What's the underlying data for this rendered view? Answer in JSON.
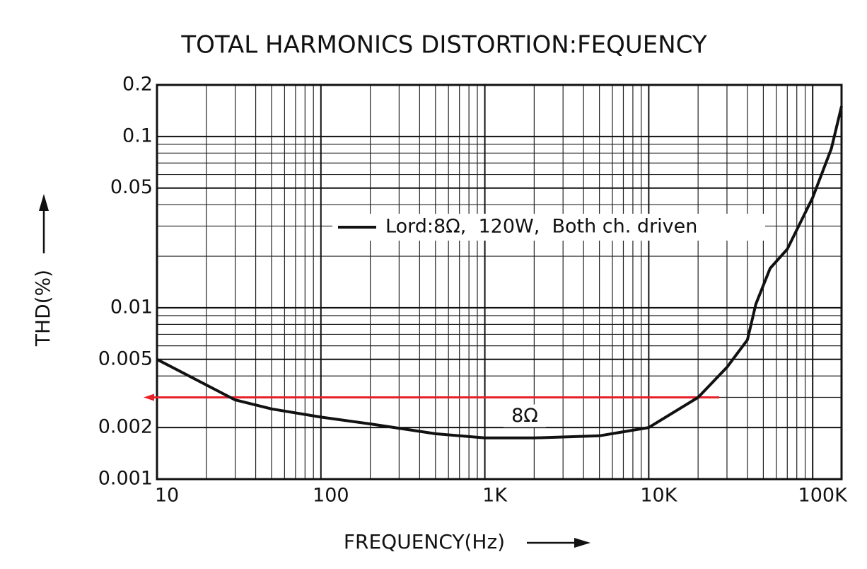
{
  "chart_data": {
    "type": "line",
    "title": "TOTAL HARMONICS DISTORTION:FEQUENCY",
    "x_label": "FREQUENCY(Hz)",
    "y_label": "THD(%)",
    "x_scale": "log",
    "y_scale": "log",
    "grid": true,
    "xlim": [
      10,
      150000
    ],
    "ylim": [
      0.001,
      0.2
    ],
    "xticks": [
      10,
      100,
      {
        "value": 1000,
        "label": "1K"
      },
      {
        "value": 10000,
        "label": "10K"
      },
      {
        "value": 100000,
        "label": "100K"
      }
    ],
    "yticks": [
      0.001,
      0.002,
      0.005,
      0.01,
      0.05,
      0.1,
      0.2
    ],
    "x": [
      10,
      30,
      50,
      100,
      200,
      500,
      1000,
      2000,
      5000,
      10000,
      20000,
      30000,
      40000,
      45000,
      55000,
      70000,
      100000,
      130000,
      150000
    ],
    "series": [
      {
        "name": "Lord:8Ω,  120W,  Both ch. driven",
        "color": "#111111",
        "values": [
          0.005,
          0.0029,
          0.00257,
          0.0023,
          0.0021,
          0.00184,
          0.00174,
          0.00174,
          0.00179,
          0.002,
          0.003,
          0.0045,
          0.0065,
          0.0105,
          0.017,
          0.022,
          0.044,
          0.085,
          0.15
        ]
      }
    ],
    "reference_line": {
      "value": 0.003,
      "label": "8Ω",
      "color": "#e8202a"
    }
  }
}
